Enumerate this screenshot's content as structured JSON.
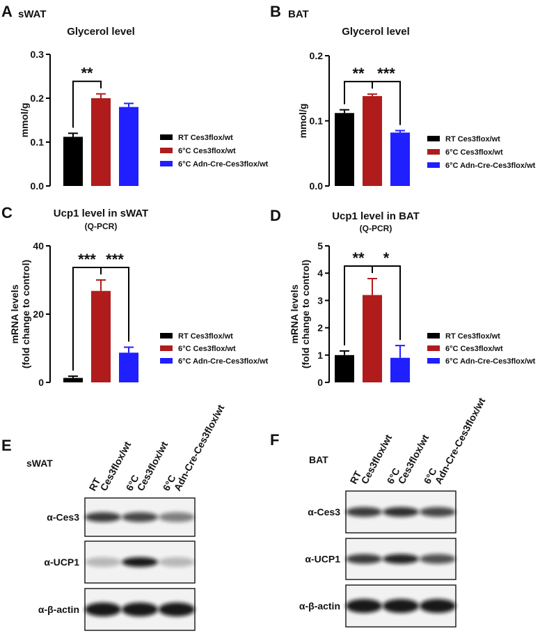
{
  "chart_data": [
    {
      "type": "bar",
      "panel": "A",
      "group": "sWAT",
      "title": "Glycerol level",
      "ylabel": [
        "mmol/g"
      ],
      "ylim": [
        0,
        0.3
      ],
      "yticks": [
        {
          "value": 0,
          "label": "0.0"
        },
        0.1,
        0.2,
        0.3
      ],
      "series": [
        {
          "name": "RT Ces3flox/wt",
          "color": "#000000",
          "values": [
            0.112
          ],
          "errors": [
            0.008
          ]
        },
        {
          "name": "6°C Ces3flox/wt",
          "color": "#b01c1c",
          "values": [
            0.2
          ],
          "errors": [
            0.01
          ]
        },
        {
          "name": "6°C Adn-Cre-Ces3flox/wt",
          "color": "#1f1fff",
          "values": [
            0.18
          ],
          "errors": [
            0.008
          ]
        }
      ],
      "annotations": [
        "**"
      ]
    },
    {
      "type": "bar",
      "panel": "B",
      "group": "BAT",
      "title": "Glycerol level",
      "ylabel": [
        "mmol/g"
      ],
      "ylim": [
        0,
        0.2
      ],
      "yticks": [
        {
          "value": 0,
          "label": "0.0"
        },
        0.1,
        0.2
      ],
      "series": [
        {
          "name": "RT Ces3flox/wt",
          "color": "#000000",
          "values": [
            0.112
          ],
          "errors": [
            0.005
          ]
        },
        {
          "name": "6°C Ces3flox/wt",
          "color": "#b01c1c",
          "values": [
            0.138
          ],
          "errors": [
            0.003
          ]
        },
        {
          "name": "6°C Adn-Cre-Ces3flox/wt",
          "color": "#1f1fff",
          "values": [
            0.082
          ],
          "errors": [
            0.003
          ]
        }
      ],
      "annotations": [
        "**",
        "***"
      ]
    },
    {
      "type": "bar",
      "panel": "C",
      "title": "Ucp1 level in sWAT",
      "subtitle": "(Q-PCR)",
      "ylabel": [
        "mRNA levels",
        "(fold change to control)"
      ],
      "ylim": [
        0,
        40
      ],
      "yticks": [
        0,
        20,
        40
      ],
      "series": [
        {
          "name": "RT Ces3flox/wt",
          "color": "#000000",
          "values": [
            1.3
          ],
          "errors": [
            0.5
          ]
        },
        {
          "name": "6°C Ces3flox/wt",
          "color": "#b01c1c",
          "values": [
            26.8
          ],
          "errors": [
            3.2
          ]
        },
        {
          "name": "6°C Adn-Cre-Ces3flox/wt",
          "color": "#1f1fff",
          "values": [
            8.7
          ],
          "errors": [
            1.6
          ]
        }
      ],
      "annotations": [
        "***",
        "***"
      ]
    },
    {
      "type": "bar",
      "panel": "D",
      "title": "Ucp1 level in BAT",
      "subtitle": "(Q-PCR)",
      "ylabel": [
        "mRNA levels",
        "(fold change to control)"
      ],
      "ylim": [
        0,
        5
      ],
      "yticks": [
        0,
        1,
        2,
        3,
        4,
        5
      ],
      "series": [
        {
          "name": "RT Ces3flox/wt",
          "color": "#000000",
          "values": [
            1.0
          ],
          "errors": [
            0.15
          ]
        },
        {
          "name": "6°C Ces3flox/wt",
          "color": "#b01c1c",
          "values": [
            3.2
          ],
          "errors": [
            0.6
          ]
        },
        {
          "name": "6°C Adn-Cre-Ces3flox/wt",
          "color": "#1f1fff",
          "values": [
            0.9
          ],
          "errors": [
            0.45
          ]
        }
      ],
      "annotations": [
        "**",
        "*"
      ]
    }
  ],
  "blots": [
    {
      "panel": "E",
      "tissue": "sWAT",
      "lanes": [
        [
          "RT",
          "Ces3flox/wt"
        ],
        [
          "6°C",
          "Ces3flox/wt"
        ],
        [
          "6°C",
          "Adn-Cre-Ces3flox/wt"
        ]
      ],
      "rows": [
        "α-Ces3",
        "α-UCP1",
        "α-β-actin"
      ]
    },
    {
      "panel": "F",
      "tissue": "BAT",
      "lanes": [
        [
          "RT",
          "Ces3flox/wt"
        ],
        [
          "6°C",
          "Ces3flox/wt"
        ],
        [
          "6°C",
          "Adn-Cre-Ces3flox/wt"
        ]
      ],
      "rows": [
        "α-Ces3",
        "α-UCP1",
        "α-β-actin"
      ]
    }
  ]
}
